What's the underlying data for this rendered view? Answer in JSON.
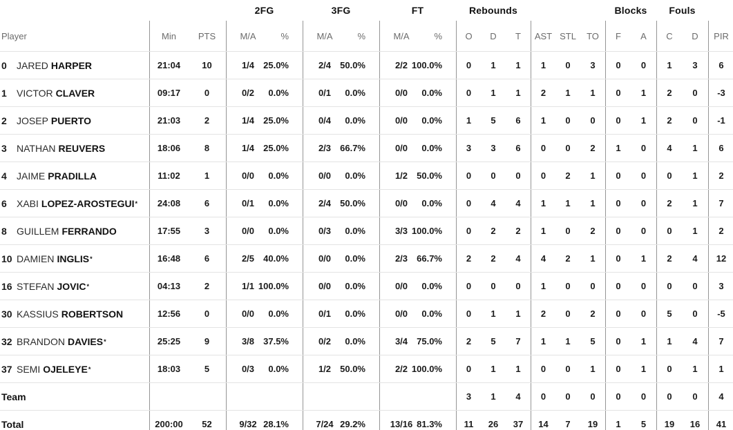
{
  "table": {
    "group_headers": {
      "fg2": "2FG",
      "fg3": "3FG",
      "ft": "FT",
      "rebounds": "Rebounds",
      "blocks": "Blocks",
      "fouls": "Fouls"
    },
    "column_headers": {
      "player": "Player",
      "min": "Min",
      "pts": "PTS",
      "ma": "M/A",
      "pct": "%",
      "o": "O",
      "d": "D",
      "t": "T",
      "ast": "AST",
      "stl": "STL",
      "to": "TO",
      "f": "F",
      "a": "A",
      "c": "C",
      "pir": "PIR"
    },
    "players": [
      {
        "num": "0",
        "first": "JARED",
        "last": "HARPER",
        "star": "",
        "min": "21:04",
        "pts": "10",
        "fg2_ma": "1/4",
        "fg2_pct": "25.0%",
        "fg3_ma": "2/4",
        "fg3_pct": "50.0%",
        "ft_ma": "2/2",
        "ft_pct": "100.0%",
        "reb_o": "0",
        "reb_d": "1",
        "reb_t": "1",
        "ast": "1",
        "stl": "0",
        "to": "3",
        "blk_f": "0",
        "blk_a": "0",
        "foul_c": "1",
        "foul_d": "3",
        "pir": "6"
      },
      {
        "num": "1",
        "first": "VICTOR",
        "last": "CLAVER",
        "star": "",
        "min": "09:17",
        "pts": "0",
        "fg2_ma": "0/2",
        "fg2_pct": "0.0%",
        "fg3_ma": "0/1",
        "fg3_pct": "0.0%",
        "ft_ma": "0/0",
        "ft_pct": "0.0%",
        "reb_o": "0",
        "reb_d": "1",
        "reb_t": "1",
        "ast": "2",
        "stl": "1",
        "to": "1",
        "blk_f": "0",
        "blk_a": "1",
        "foul_c": "2",
        "foul_d": "0",
        "pir": "-3"
      },
      {
        "num": "2",
        "first": "JOSEP",
        "last": "PUERTO",
        "star": "",
        "min": "21:03",
        "pts": "2",
        "fg2_ma": "1/4",
        "fg2_pct": "25.0%",
        "fg3_ma": "0/4",
        "fg3_pct": "0.0%",
        "ft_ma": "0/0",
        "ft_pct": "0.0%",
        "reb_o": "1",
        "reb_d": "5",
        "reb_t": "6",
        "ast": "1",
        "stl": "0",
        "to": "0",
        "blk_f": "0",
        "blk_a": "1",
        "foul_c": "2",
        "foul_d": "0",
        "pir": "-1"
      },
      {
        "num": "3",
        "first": "NATHAN",
        "last": "REUVERS",
        "star": "",
        "min": "18:06",
        "pts": "8",
        "fg2_ma": "1/4",
        "fg2_pct": "25.0%",
        "fg3_ma": "2/3",
        "fg3_pct": "66.7%",
        "ft_ma": "0/0",
        "ft_pct": "0.0%",
        "reb_o": "3",
        "reb_d": "3",
        "reb_t": "6",
        "ast": "0",
        "stl": "0",
        "to": "2",
        "blk_f": "1",
        "blk_a": "0",
        "foul_c": "4",
        "foul_d": "1",
        "pir": "6"
      },
      {
        "num": "4",
        "first": "JAIME",
        "last": "PRADILLA",
        "star": "",
        "min": "11:02",
        "pts": "1",
        "fg2_ma": "0/0",
        "fg2_pct": "0.0%",
        "fg3_ma": "0/0",
        "fg3_pct": "0.0%",
        "ft_ma": "1/2",
        "ft_pct": "50.0%",
        "reb_o": "0",
        "reb_d": "0",
        "reb_t": "0",
        "ast": "0",
        "stl": "2",
        "to": "1",
        "blk_f": "0",
        "blk_a": "0",
        "foul_c": "0",
        "foul_d": "1",
        "pir": "2"
      },
      {
        "num": "6",
        "first": "XABI",
        "last": "LOPEZ-AROSTEGUI",
        "star": "*",
        "min": "24:08",
        "pts": "6",
        "fg2_ma": "0/1",
        "fg2_pct": "0.0%",
        "fg3_ma": "2/4",
        "fg3_pct": "50.0%",
        "ft_ma": "0/0",
        "ft_pct": "0.0%",
        "reb_o": "0",
        "reb_d": "4",
        "reb_t": "4",
        "ast": "1",
        "stl": "1",
        "to": "1",
        "blk_f": "0",
        "blk_a": "0",
        "foul_c": "2",
        "foul_d": "1",
        "pir": "7"
      },
      {
        "num": "8",
        "first": "GUILLEM",
        "last": "FERRANDO",
        "star": "",
        "min": "17:55",
        "pts": "3",
        "fg2_ma": "0/0",
        "fg2_pct": "0.0%",
        "fg3_ma": "0/3",
        "fg3_pct": "0.0%",
        "ft_ma": "3/3",
        "ft_pct": "100.0%",
        "reb_o": "0",
        "reb_d": "2",
        "reb_t": "2",
        "ast": "1",
        "stl": "0",
        "to": "2",
        "blk_f": "0",
        "blk_a": "0",
        "foul_c": "0",
        "foul_d": "1",
        "pir": "2"
      },
      {
        "num": "10",
        "first": "DAMIEN",
        "last": "INGLIS",
        "star": "*",
        "min": "16:48",
        "pts": "6",
        "fg2_ma": "2/5",
        "fg2_pct": "40.0%",
        "fg3_ma": "0/0",
        "fg3_pct": "0.0%",
        "ft_ma": "2/3",
        "ft_pct": "66.7%",
        "reb_o": "2",
        "reb_d": "2",
        "reb_t": "4",
        "ast": "4",
        "stl": "2",
        "to": "1",
        "blk_f": "0",
        "blk_a": "1",
        "foul_c": "2",
        "foul_d": "4",
        "pir": "12"
      },
      {
        "num": "16",
        "first": "STEFAN",
        "last": "JOVIC",
        "star": "*",
        "min": "04:13",
        "pts": "2",
        "fg2_ma": "1/1",
        "fg2_pct": "100.0%",
        "fg3_ma": "0/0",
        "fg3_pct": "0.0%",
        "ft_ma": "0/0",
        "ft_pct": "0.0%",
        "reb_o": "0",
        "reb_d": "0",
        "reb_t": "0",
        "ast": "1",
        "stl": "0",
        "to": "0",
        "blk_f": "0",
        "blk_a": "0",
        "foul_c": "0",
        "foul_d": "0",
        "pir": "3"
      },
      {
        "num": "30",
        "first": "KASSIUS",
        "last": "ROBERTSON",
        "star": "",
        "min": "12:56",
        "pts": "0",
        "fg2_ma": "0/0",
        "fg2_pct": "0.0%",
        "fg3_ma": "0/1",
        "fg3_pct": "0.0%",
        "ft_ma": "0/0",
        "ft_pct": "0.0%",
        "reb_o": "0",
        "reb_d": "1",
        "reb_t": "1",
        "ast": "2",
        "stl": "0",
        "to": "2",
        "blk_f": "0",
        "blk_a": "0",
        "foul_c": "5",
        "foul_d": "0",
        "pir": "-5"
      },
      {
        "num": "32",
        "first": "BRANDON",
        "last": "DAVIES",
        "star": "*",
        "min": "25:25",
        "pts": "9",
        "fg2_ma": "3/8",
        "fg2_pct": "37.5%",
        "fg3_ma": "0/2",
        "fg3_pct": "0.0%",
        "ft_ma": "3/4",
        "ft_pct": "75.0%",
        "reb_o": "2",
        "reb_d": "5",
        "reb_t": "7",
        "ast": "1",
        "stl": "1",
        "to": "5",
        "blk_f": "0",
        "blk_a": "1",
        "foul_c": "1",
        "foul_d": "4",
        "pir": "7"
      },
      {
        "num": "37",
        "first": "SEMI",
        "last": "OJELEYE",
        "star": "*",
        "min": "18:03",
        "pts": "5",
        "fg2_ma": "0/3",
        "fg2_pct": "0.0%",
        "fg3_ma": "1/2",
        "fg3_pct": "50.0%",
        "ft_ma": "2/2",
        "ft_pct": "100.0%",
        "reb_o": "0",
        "reb_d": "1",
        "reb_t": "1",
        "ast": "0",
        "stl": "0",
        "to": "1",
        "blk_f": "0",
        "blk_a": "1",
        "foul_c": "0",
        "foul_d": "1",
        "pir": "1"
      }
    ],
    "team_row": {
      "label": "Team",
      "min": "",
      "pts": "",
      "fg2_ma": "",
      "fg2_pct": "",
      "fg3_ma": "",
      "fg3_pct": "",
      "ft_ma": "",
      "ft_pct": "",
      "reb_o": "3",
      "reb_d": "1",
      "reb_t": "4",
      "ast": "0",
      "stl": "0",
      "to": "0",
      "blk_f": "0",
      "blk_a": "0",
      "foul_c": "0",
      "foul_d": "0",
      "pir": "4"
    },
    "total_row": {
      "label": "Total",
      "min": "200:00",
      "pts": "52",
      "fg2_ma": "9/32",
      "fg2_pct": "28.1%",
      "fg3_ma": "7/24",
      "fg3_pct": "29.2%",
      "ft_ma": "13/16",
      "ft_pct": "81.3%",
      "reb_o": "11",
      "reb_d": "26",
      "reb_t": "37",
      "ast": "14",
      "stl": "7",
      "to": "19",
      "blk_f": "1",
      "blk_a": "5",
      "foul_c": "19",
      "foul_d": "16",
      "pir": "41"
    }
  }
}
